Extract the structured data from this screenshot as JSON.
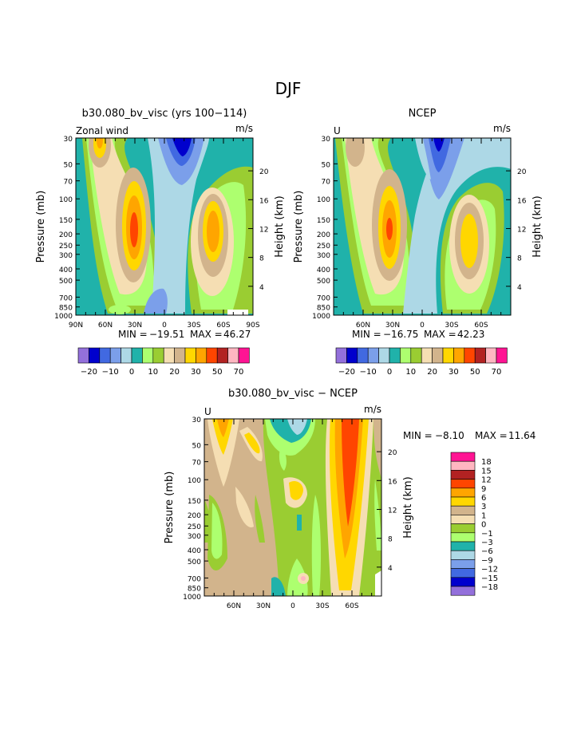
{
  "page": {
    "main_title": "DJF"
  },
  "palette": {
    "model_obs": [
      "#9370DB",
      "#0000CD",
      "#4169E1",
      "#7B9FEA",
      "#ADD8E6",
      "#20B2AA",
      "#ADFF6F",
      "#9ACD32",
      "#F5DEB3",
      "#D2B48C",
      "#FFD700",
      "#FFA500",
      "#FF4500",
      "#B22222",
      "#FFB6C1",
      "#FF1493"
    ],
    "diff": [
      "#9370DB",
      "#0000CD",
      "#4169E1",
      "#7B9FEA",
      "#ADD8E6",
      "#20B2AA",
      "#ADFF6F",
      "#9ACD32",
      "#F5DEB3",
      "#D2B48C",
      "#FFD700",
      "#FFA500",
      "#FF4500",
      "#B22222",
      "#FFB6C1",
      "#FF1493"
    ]
  },
  "chart_data": [
    {
      "type": "heatmap",
      "title": "b30.080_bv_visc (yrs 100−114)",
      "field_label": "Zonal wind",
      "units": "m/s",
      "ylabel": "Pressure (mb)",
      "y2label": "Height (km)",
      "pressure_ticks": [
        "30",
        "50",
        "70",
        "100",
        "150",
        "200",
        "250",
        "300",
        "400",
        "500",
        "700",
        "850",
        "1000"
      ],
      "height_ticks": [
        "20",
        "16",
        "12",
        "8",
        "4"
      ],
      "lat_ticks": [
        "90N",
        "60N",
        "30N",
        "0",
        "30S",
        "60S",
        "90S"
      ],
      "min": "−19.51",
      "max": "46.27",
      "min_label": "MIN =",
      "max_label": "MAX =",
      "colorbar_labels": [
        "−20",
        "−10",
        "0",
        "10",
        "20",
        "30",
        "50",
        "70"
      ]
    },
    {
      "type": "heatmap",
      "title": "NCEP",
      "field_label": "U",
      "units": "m/s",
      "ylabel": "Pressure (mb)",
      "y2label": "Height (km)",
      "pressure_ticks": [
        "30",
        "50",
        "70",
        "100",
        "150",
        "200",
        "250",
        "300",
        "400",
        "500",
        "700",
        "850",
        "1000"
      ],
      "height_ticks": [
        "20",
        "16",
        "12",
        "8",
        "4"
      ],
      "lat_ticks": [
        "60N",
        "30N",
        "0",
        "30S",
        "60S"
      ],
      "min": "−16.75",
      "max": "42.23",
      "min_label": "MIN =",
      "max_label": "MAX =",
      "colorbar_labels": [
        "−20",
        "−10",
        "0",
        "10",
        "20",
        "30",
        "50",
        "70"
      ]
    },
    {
      "type": "heatmap",
      "title": "b30.080_bv_visc − NCEP",
      "field_label": "U",
      "units": "m/s",
      "ylabel": "Pressure (mb)",
      "y2label": "Height (km)",
      "pressure_ticks": [
        "30",
        "50",
        "70",
        "100",
        "150",
        "200",
        "250",
        "300",
        "400",
        "500",
        "700",
        "850",
        "1000"
      ],
      "height_ticks": [
        "20",
        "16",
        "12",
        "8",
        "4"
      ],
      "lat_ticks": [
        "60N",
        "30N",
        "0",
        "30S",
        "60S"
      ],
      "min": "−8.10",
      "max": "11.64",
      "min_label": "MIN =",
      "max_label": "MAX =",
      "colorbar_labels": [
        "18",
        "15",
        "12",
        "9",
        "6",
        "3",
        "1",
        "0",
        "−1",
        "−3",
        "−6",
        "−9",
        "−12",
        "−15",
        "−18"
      ]
    }
  ]
}
